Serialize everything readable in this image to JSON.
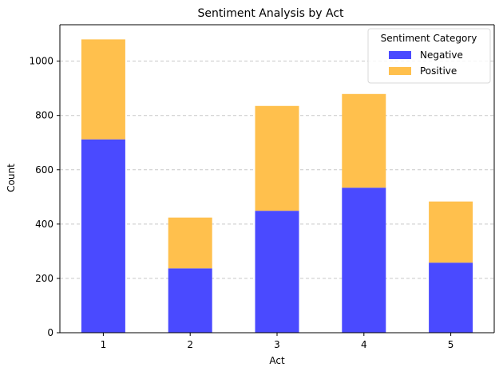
{
  "chart_data": {
    "type": "bar",
    "stacked": true,
    "title": "Sentiment Analysis by Act",
    "xlabel": "Act",
    "ylabel": "Count",
    "categories": [
      "1",
      "2",
      "3",
      "4",
      "5"
    ],
    "series": [
      {
        "name": "Negative",
        "values": [
          712,
          237,
          449,
          534,
          258
        ],
        "color": "#4a4aff"
      },
      {
        "name": "Positive",
        "values": [
          368,
          187,
          386,
          345,
          225
        ],
        "color": "#ffc04d"
      }
    ],
    "yticks": [
      0,
      200,
      400,
      600,
      800,
      1000
    ],
    "ylim": [
      0,
      1134
    ],
    "grid": "y-dashed",
    "legend": {
      "title": "Sentiment Category",
      "placement": "top-right"
    }
  }
}
